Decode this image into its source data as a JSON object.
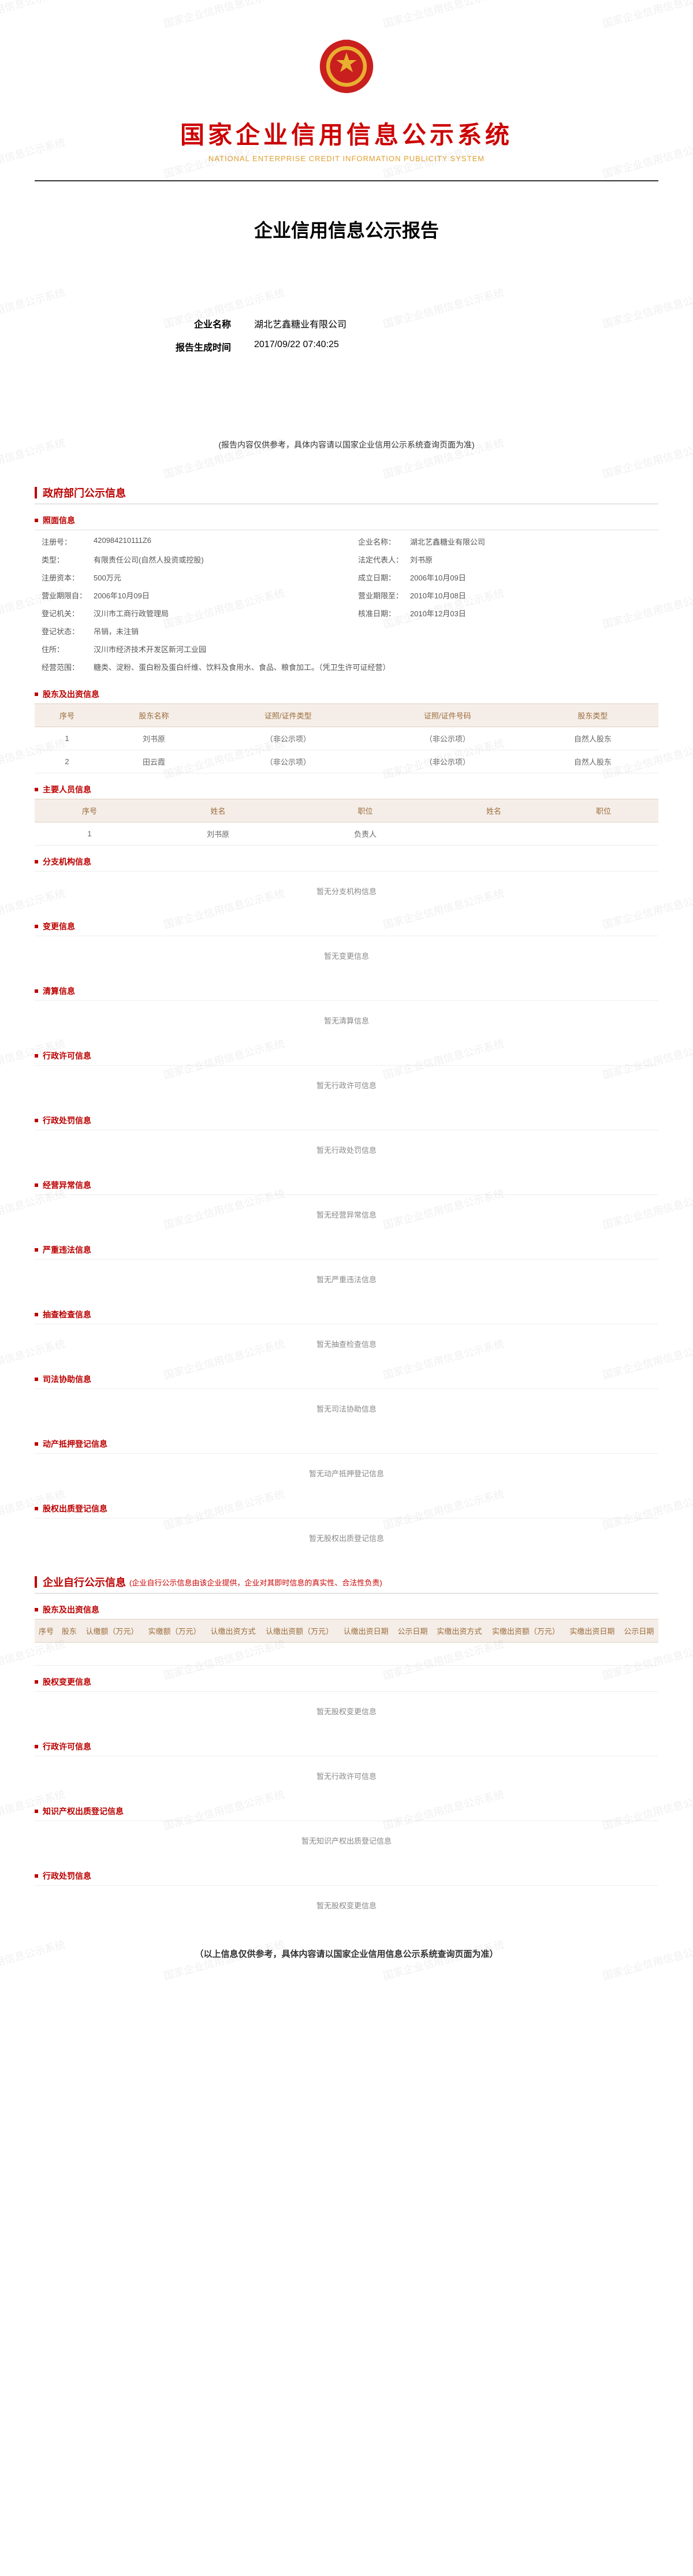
{
  "header": {
    "main_title": "国家企业信用信息公示系统",
    "sub_title": "NATIONAL ENTERPRISE CREDIT INFORMATION PUBLICITY SYSTEM",
    "report_title": "企业信用信息公示报告",
    "emblem_color": "#c91f1f"
  },
  "meta": {
    "name_label": "企业名称",
    "name_value": "湖北艺鑫糖业有限公司",
    "time_label": "报告生成时间",
    "time_value": "2017/09/22 07:40:25"
  },
  "disclaimer_top": "(报告内容仅供参考，具体内容请以国家企业信用公示系统查询页面为准)",
  "section_gov": "政府部门公示信息",
  "section_self": "企业自行公示信息",
  "section_self_note": "(企业自行公示信息由该企业提供，企业对其即时信息的真实性、合法性负责)",
  "basic": {
    "title": "照面信息",
    "reg_no_k": "注册号：",
    "reg_no_v": "420984210111Z6",
    "name_k": "企业名称：",
    "name_v": "湖北艺鑫糖业有限公司",
    "type_k": "类型：",
    "type_v": "有限责任公司(自然人投资或控股)",
    "legal_k": "法定代表人：",
    "legal_v": "刘书原",
    "cap_k": "注册资本：",
    "cap_v": "500万元",
    "est_k": "成立日期：",
    "est_v": "2006年10月09日",
    "from_k": "营业期限自：",
    "from_v": "2006年10月09日",
    "to_k": "营业期限至：",
    "to_v": "2010年10月08日",
    "auth_k": "登记机关：",
    "auth_v": "汉川市工商行政管理局",
    "appr_k": "核准日期：",
    "appr_v": "2010年12月03日",
    "stat_k": "登记状态：",
    "stat_v": "吊销，未注销",
    "addr_k": "住所：",
    "addr_v": "汉川市经济技术开发区新河工业园",
    "scope_k": "经营范围：",
    "scope_v": "糖类、淀粉、蛋白粉及蛋白纤维、饮料及食用水、食品、粮食加工。（凭卫生许可证经营）"
  },
  "shareholders": {
    "title": "股东及出资信息",
    "cols": [
      "序号",
      "股东名称",
      "证照/证件类型",
      "证照/证件号码",
      "股东类型"
    ],
    "rows": [
      [
        "1",
        "刘书原",
        "（非公示项）",
        "（非公示项）",
        "自然人股东"
      ],
      [
        "2",
        "田云霞",
        "（非公示项）",
        "（非公示项）",
        "自然人股东"
      ]
    ]
  },
  "personnel": {
    "title": "主要人员信息",
    "cols": [
      "序号",
      "姓名",
      "职位",
      "姓名",
      "职位"
    ],
    "rows": [
      [
        "1",
        "刘书原",
        "负责人",
        "",
        ""
      ]
    ]
  },
  "empties": [
    {
      "title": "分支机构信息",
      "msg": "暂无分支机构信息"
    },
    {
      "title": "变更信息",
      "msg": "暂无变更信息"
    },
    {
      "title": "清算信息",
      "msg": "暂无清算信息"
    },
    {
      "title": "行政许可信息",
      "msg": "暂无行政许可信息"
    },
    {
      "title": "行政处罚信息",
      "msg": "暂无行政处罚信息"
    },
    {
      "title": "经营异常信息",
      "msg": "暂无经营异常信息"
    },
    {
      "title": "严重违法信息",
      "msg": "暂无严重违法信息"
    },
    {
      "title": "抽查检查信息",
      "msg": "暂无抽查检查信息"
    },
    {
      "title": "司法协助信息",
      "msg": "暂无司法协助信息"
    },
    {
      "title": "动产抵押登记信息",
      "msg": "暂无动产抵押登记信息"
    },
    {
      "title": "股权出质登记信息",
      "msg": "暂无股权出质登记信息"
    }
  ],
  "self_shareholder": {
    "title": "股东及出资信息",
    "cols": [
      "序号",
      "股东",
      "认缴额（万元）",
      "实缴额（万元）",
      "认缴出资方式",
      "认缴出资额（万元）",
      "认缴出资日期",
      "公示日期",
      "实缴出资方式",
      "实缴出资额（万元）",
      "实缴出资日期",
      "公示日期"
    ]
  },
  "self_empties": [
    {
      "title": "股权变更信息",
      "msg": "暂无股权变更信息"
    },
    {
      "title": "行政许可信息",
      "msg": "暂无行政许可信息"
    },
    {
      "title": "知识产权出质登记信息",
      "msg": "暂无知识产权出质登记信息"
    },
    {
      "title": "行政处罚信息",
      "msg": "暂无股权变更信息"
    }
  ],
  "footer_note": "（以上信息仅供参考，具体内容请以国家企业信用信息公示系统查询页面为准）",
  "watermark_text": "国家企业信用信息公示系统"
}
